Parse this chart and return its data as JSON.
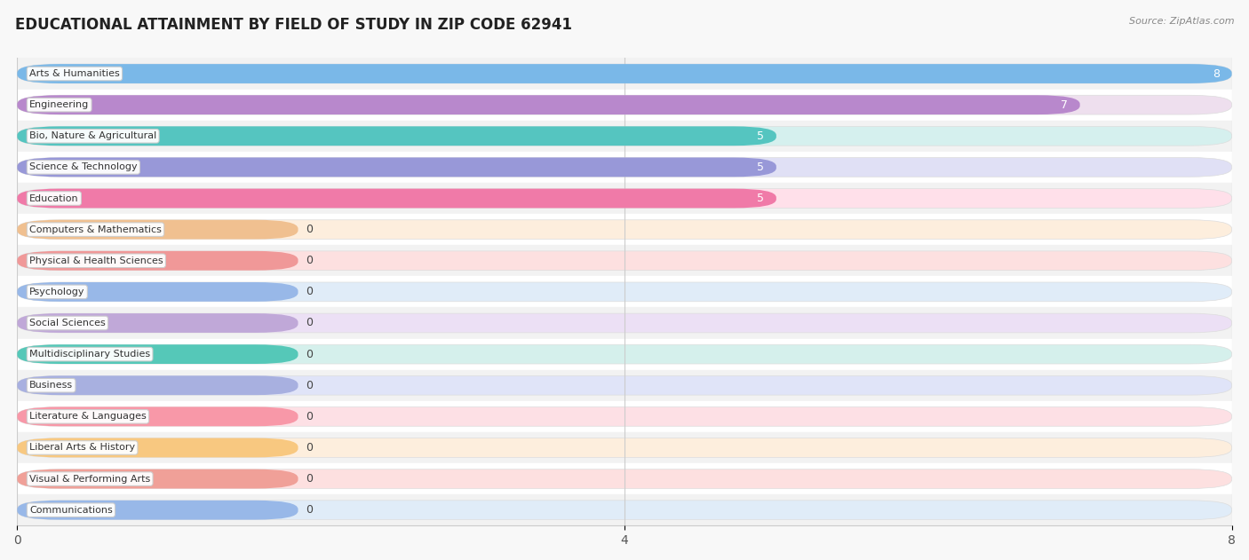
{
  "title": "EDUCATIONAL ATTAINMENT BY FIELD OF STUDY IN ZIP CODE 62941",
  "source": "Source: ZipAtlas.com",
  "categories": [
    "Arts & Humanities",
    "Engineering",
    "Bio, Nature & Agricultural",
    "Science & Technology",
    "Education",
    "Computers & Mathematics",
    "Physical & Health Sciences",
    "Psychology",
    "Social Sciences",
    "Multidisciplinary Studies",
    "Business",
    "Literature & Languages",
    "Liberal Arts & History",
    "Visual & Performing Arts",
    "Communications"
  ],
  "values": [
    8,
    7,
    5,
    5,
    5,
    0,
    0,
    0,
    0,
    0,
    0,
    0,
    0,
    0,
    0
  ],
  "bar_colors": [
    "#7ab8e8",
    "#b888cc",
    "#55c5c0",
    "#9898d8",
    "#f07aa8",
    "#f0c090",
    "#f09898",
    "#98b8e8",
    "#c0a8d8",
    "#55c8b8",
    "#a8b0e0",
    "#f898a8",
    "#f8c880",
    "#f0a098",
    "#98b8e8"
  ],
  "pill_bg_colors": [
    "#ddeeff",
    "#eedfee",
    "#d5f0ee",
    "#e0e0f5",
    "#ffe0ea",
    "#fdeedd",
    "#fde0e0",
    "#e0ecf8",
    "#ece0f5",
    "#d5f0ec",
    "#e0e4f8",
    "#fde0e5",
    "#fdeedd",
    "#fde0e0",
    "#e0ecf8"
  ],
  "xlim": [
    0,
    8
  ],
  "xticks": [
    0,
    4,
    8
  ],
  "background_color": "#f8f8f8",
  "row_bg_colors": [
    "#f2f2f2",
    "#ffffff"
  ],
  "title_fontsize": 12,
  "bar_height": 0.62
}
